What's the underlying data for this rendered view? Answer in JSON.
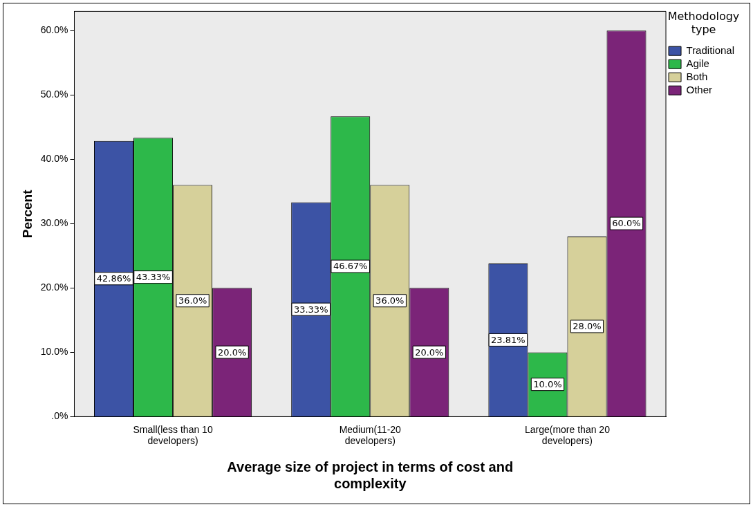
{
  "chart_data": {
    "type": "bar",
    "xlabel": "Average size of project in terms of cost and complexity",
    "ylabel": "Percent",
    "legend_title": "Methodology type",
    "legend": "top right",
    "grid": false,
    "categories": [
      "Small(less than 10 developers)",
      "Medium(11-20 developers)",
      "Large(more than 20 developers)"
    ],
    "ylim": [
      0,
      63
    ],
    "yticks": [
      {
        "value": 0,
        "label": ".0%"
      },
      {
        "value": 10,
        "label": "10.0%"
      },
      {
        "value": 20,
        "label": "20.0%"
      },
      {
        "value": 30,
        "label": "30.0%"
      },
      {
        "value": 40,
        "label": "40.0%"
      },
      {
        "value": 50,
        "label": "50.0%"
      },
      {
        "value": 60,
        "label": "60.0%"
      }
    ],
    "series": [
      {
        "name": "Traditional",
        "color": "#3c53a5",
        "values": [
          42.86,
          33.33,
          23.81
        ],
        "value_labels": [
          "42.86%",
          "33.33%",
          "23.81%"
        ]
      },
      {
        "name": "Agile",
        "color": "#2db84a",
        "values": [
          43.33,
          46.67,
          10.0
        ],
        "value_labels": [
          "43.33%",
          "46.67%",
          "10.0%"
        ]
      },
      {
        "name": "Both",
        "color": "#d6d09a",
        "values": [
          36.0,
          36.0,
          28.0
        ],
        "value_labels": [
          "36.0%",
          "36.0%",
          "28.0%"
        ]
      },
      {
        "name": "Other",
        "color": "#7b2478",
        "values": [
          20.0,
          20.0,
          60.0
        ],
        "value_labels": [
          "20.0%",
          "20.0%",
          "60.0%"
        ]
      }
    ]
  }
}
